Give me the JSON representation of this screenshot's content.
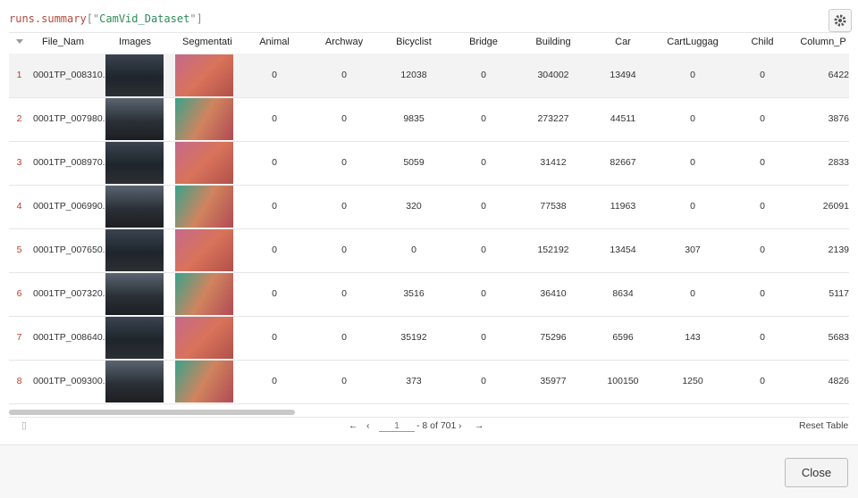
{
  "query": [
    "runs.summary",
    "[\"",
    "CamVid_Dataset",
    "\"]"
  ],
  "table": {
    "columns": [
      "File_Nam",
      "Images",
      "Segmentati",
      "Animal",
      "Archway",
      "Bicyclist",
      "Bridge",
      "Building",
      "Car",
      "CartLuggag",
      "Child",
      "Column_P"
    ],
    "rows": [
      {
        "index": 1,
        "file": "0001TP_008310.",
        "counts": [
          0,
          0,
          12038,
          0,
          304002,
          13494,
          0,
          0,
          6422
        ]
      },
      {
        "index": 2,
        "file": "0001TP_007980.",
        "counts": [
          0,
          0,
          9835,
          0,
          273227,
          44511,
          0,
          0,
          3876
        ]
      },
      {
        "index": 3,
        "file": "0001TP_008970.",
        "counts": [
          0,
          0,
          5059,
          0,
          31412,
          82667,
          0,
          0,
          2833
        ]
      },
      {
        "index": 4,
        "file": "0001TP_006990.",
        "counts": [
          0,
          0,
          320,
          0,
          77538,
          11963,
          0,
          0,
          26091
        ]
      },
      {
        "index": 5,
        "file": "0001TP_007650.",
        "counts": [
          0,
          0,
          0,
          0,
          152192,
          13454,
          307,
          0,
          2139
        ]
      },
      {
        "index": 6,
        "file": "0001TP_007320.",
        "counts": [
          0,
          0,
          3516,
          0,
          36410,
          8634,
          0,
          0,
          5117
        ]
      },
      {
        "index": 7,
        "file": "0001TP_008640.",
        "counts": [
          0,
          0,
          35192,
          0,
          75296,
          6596,
          143,
          0,
          5683
        ]
      },
      {
        "index": 8,
        "file": "0001TP_009300.",
        "counts": [
          0,
          0,
          373,
          0,
          35977,
          100150,
          1250,
          0,
          4826
        ]
      }
    ]
  },
  "pagination": {
    "first": "←",
    "prev": "‹",
    "page": "1",
    "range": "- 8 of 701",
    "next": "›",
    "last": "→",
    "reset": "Reset Table"
  },
  "footer": {
    "close": "Close"
  }
}
